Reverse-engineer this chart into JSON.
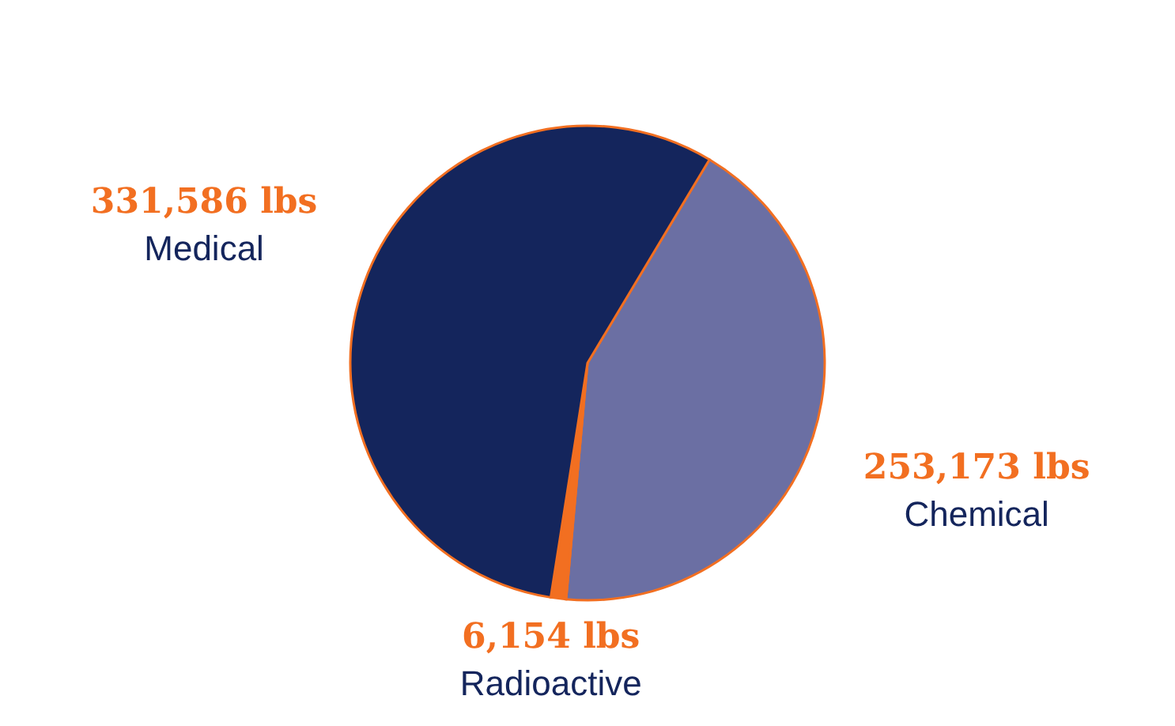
{
  "chart_data": {
    "type": "pie",
    "categories": [
      "Chemical",
      "Radioactive",
      "Medical"
    ],
    "values": [
      253173,
      6154,
      331586
    ],
    "colors": [
      "#6b6fa3",
      "#f26f21",
      "#14255c"
    ],
    "value_labels": [
      "253,173 lbs",
      "6,154 lbs",
      "331,586 lbs"
    ]
  }
}
